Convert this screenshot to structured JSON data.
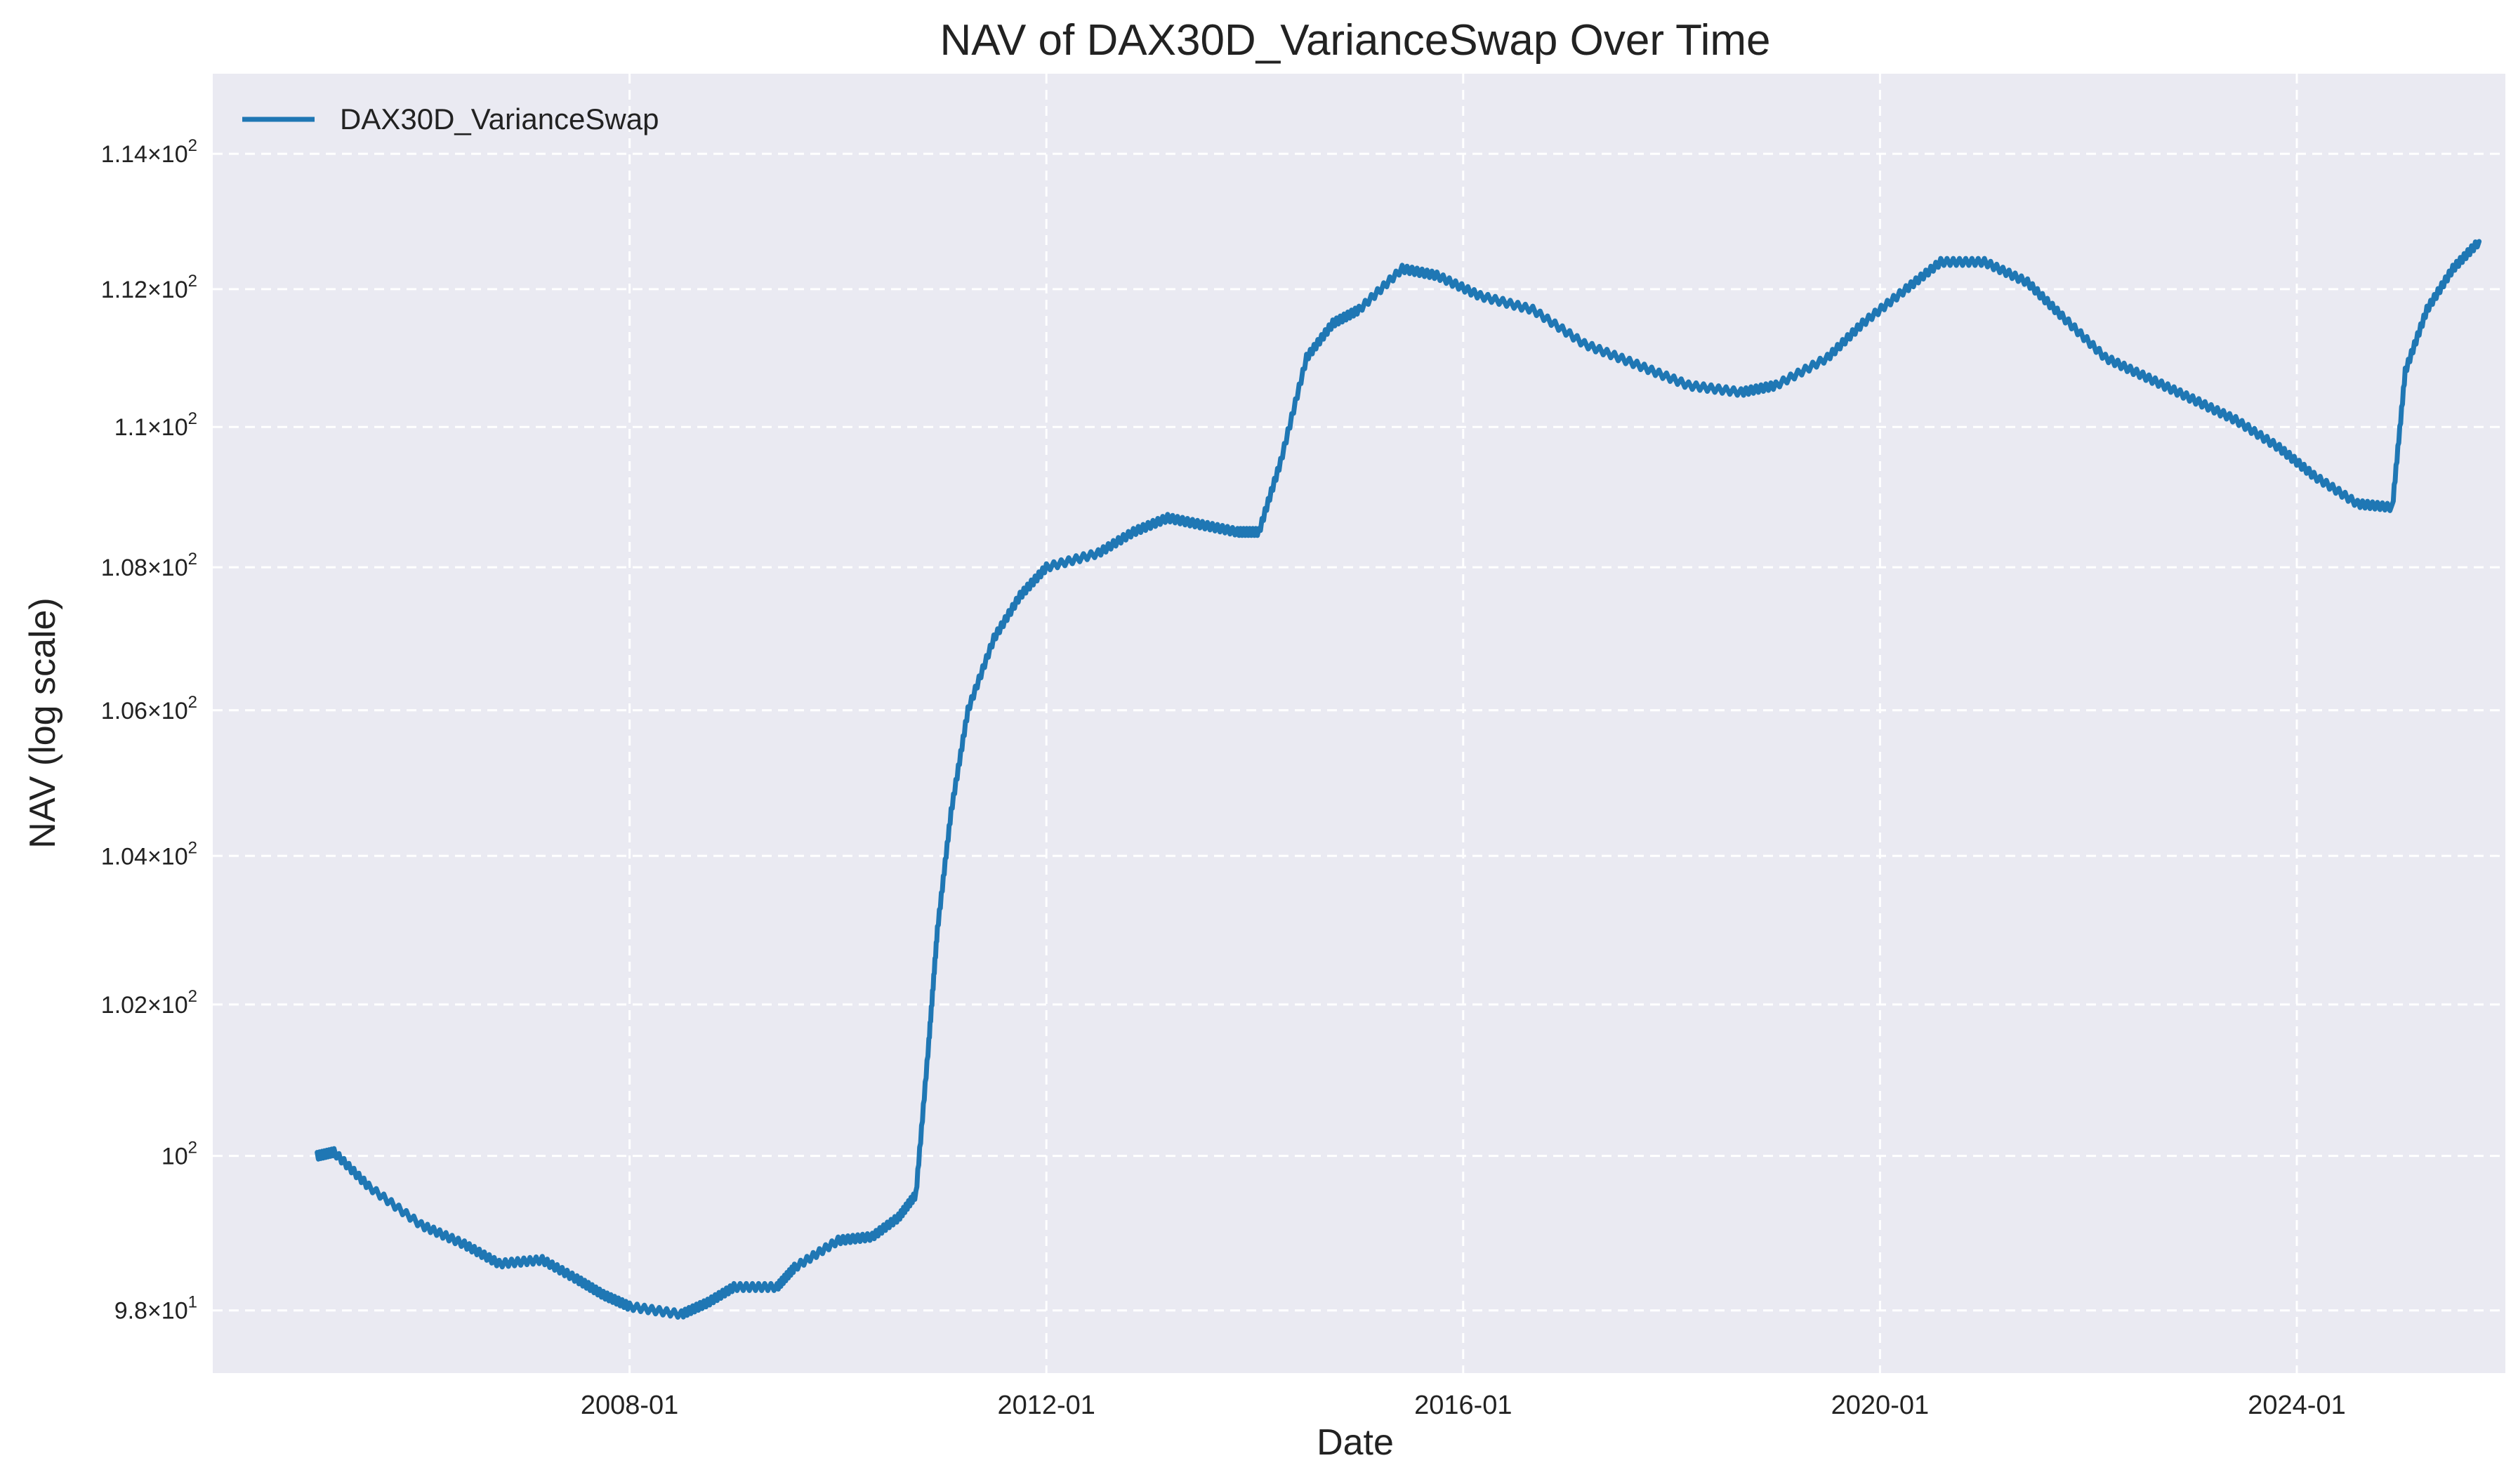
{
  "chart_data": {
    "type": "line",
    "title": "NAV of DAX30D_VarianceSwap Over Time",
    "xlabel": "Date",
    "ylabel": "NAV (log scale)",
    "y_scale": "log",
    "ylim": [
      97.2,
      115.2
    ],
    "xlim": [
      "2004-01-01",
      "2026-01-01"
    ],
    "grid": true,
    "grid_style": "dashed",
    "plot_background": "#eaeaf2",
    "line_color": "#1f77b4",
    "legend_position": "top-left",
    "x_ticks": [
      {
        "value": "2008-01-01",
        "label": "2008-01"
      },
      {
        "value": "2012-01-01",
        "label": "2012-01"
      },
      {
        "value": "2016-01-01",
        "label": "2016-01"
      },
      {
        "value": "2020-01-01",
        "label": "2020-01"
      },
      {
        "value": "2024-01-01",
        "label": "2024-01"
      }
    ],
    "y_ticks": [
      {
        "value": 98,
        "mantissa": "9.8",
        "exponent": "1"
      },
      {
        "value": 100,
        "mantissa": "",
        "exponent": "2"
      },
      {
        "value": 102,
        "mantissa": "1.02",
        "exponent": "2"
      },
      {
        "value": 104,
        "mantissa": "1.04",
        "exponent": "2"
      },
      {
        "value": 106,
        "mantissa": "1.06",
        "exponent": "2"
      },
      {
        "value": 108,
        "mantissa": "1.08",
        "exponent": "2"
      },
      {
        "value": 110,
        "mantissa": "1.1",
        "exponent": "2"
      },
      {
        "value": 112,
        "mantissa": "1.12",
        "exponent": "2"
      },
      {
        "value": 114,
        "mantissa": "1.14",
        "exponent": "2"
      }
    ],
    "series": [
      {
        "name": "DAX30D_VarianceSwap",
        "points": [
          [
            "2005-01-01",
            100.0
          ],
          [
            "2005-03-01",
            100.05
          ],
          [
            "2005-07-01",
            99.6
          ],
          [
            "2006-01-01",
            99.1
          ],
          [
            "2006-06-01",
            98.85
          ],
          [
            "2006-10-01",
            98.6
          ],
          [
            "2007-03-01",
            98.65
          ],
          [
            "2007-07-01",
            98.4
          ],
          [
            "2007-10-01",
            98.2
          ],
          [
            "2008-01-01",
            98.05
          ],
          [
            "2008-07-01",
            97.95
          ],
          [
            "2008-10-01",
            98.1
          ],
          [
            "2009-01-01",
            98.3
          ],
          [
            "2009-06-01",
            98.3
          ],
          [
            "2009-08-01",
            98.55
          ],
          [
            "2010-01-01",
            98.9
          ],
          [
            "2010-05-01",
            98.95
          ],
          [
            "2010-08-01",
            99.2
          ],
          [
            "2010-10-01",
            99.5
          ],
          [
            "2010-11-15",
            101.5
          ],
          [
            "2010-12-15",
            103.0
          ],
          [
            "2011-02-01",
            104.6
          ],
          [
            "2011-04-01",
            106.0
          ],
          [
            "2011-07-01",
            107.0
          ],
          [
            "2011-10-01",
            107.6
          ],
          [
            "2012-01-01",
            108.0
          ],
          [
            "2012-07-01",
            108.2
          ],
          [
            "2012-11-01",
            108.5
          ],
          [
            "2013-03-01",
            108.7
          ],
          [
            "2013-07-01",
            108.6
          ],
          [
            "2013-11-01",
            108.5
          ],
          [
            "2014-01-15",
            108.5
          ],
          [
            "2014-04-01",
            109.5
          ],
          [
            "2014-07-01",
            111.0
          ],
          [
            "2014-10-01",
            111.5
          ],
          [
            "2015-01-01",
            111.7
          ],
          [
            "2015-06-01",
            112.3
          ],
          [
            "2015-10-01",
            112.2
          ],
          [
            "2016-03-01",
            111.9
          ],
          [
            "2016-09-01",
            111.7
          ],
          [
            "2017-03-01",
            111.2
          ],
          [
            "2017-09-01",
            110.9
          ],
          [
            "2018-03-01",
            110.6
          ],
          [
            "2018-09-01",
            110.5
          ],
          [
            "2019-01-01",
            110.6
          ],
          [
            "2019-07-01",
            111.0
          ],
          [
            "2019-11-01",
            111.5
          ],
          [
            "2020-04-01",
            112.0
          ],
          [
            "2020-08-01",
            112.4
          ],
          [
            "2021-01-01",
            112.4
          ],
          [
            "2021-06-01",
            112.1
          ],
          [
            "2021-10-01",
            111.6
          ],
          [
            "2022-03-01",
            111.0
          ],
          [
            "2022-08-01",
            110.7
          ],
          [
            "2023-01-01",
            110.4
          ],
          [
            "2023-06-01",
            110.1
          ],
          [
            "2023-11-01",
            109.7
          ],
          [
            "2024-03-01",
            109.3
          ],
          [
            "2024-08-01",
            108.9
          ],
          [
            "2024-12-01",
            108.85
          ],
          [
            "2025-01-15",
            110.8
          ],
          [
            "2025-04-01",
            111.7
          ],
          [
            "2025-07-01",
            112.3
          ],
          [
            "2025-10-01",
            112.7
          ]
        ]
      }
    ]
  }
}
